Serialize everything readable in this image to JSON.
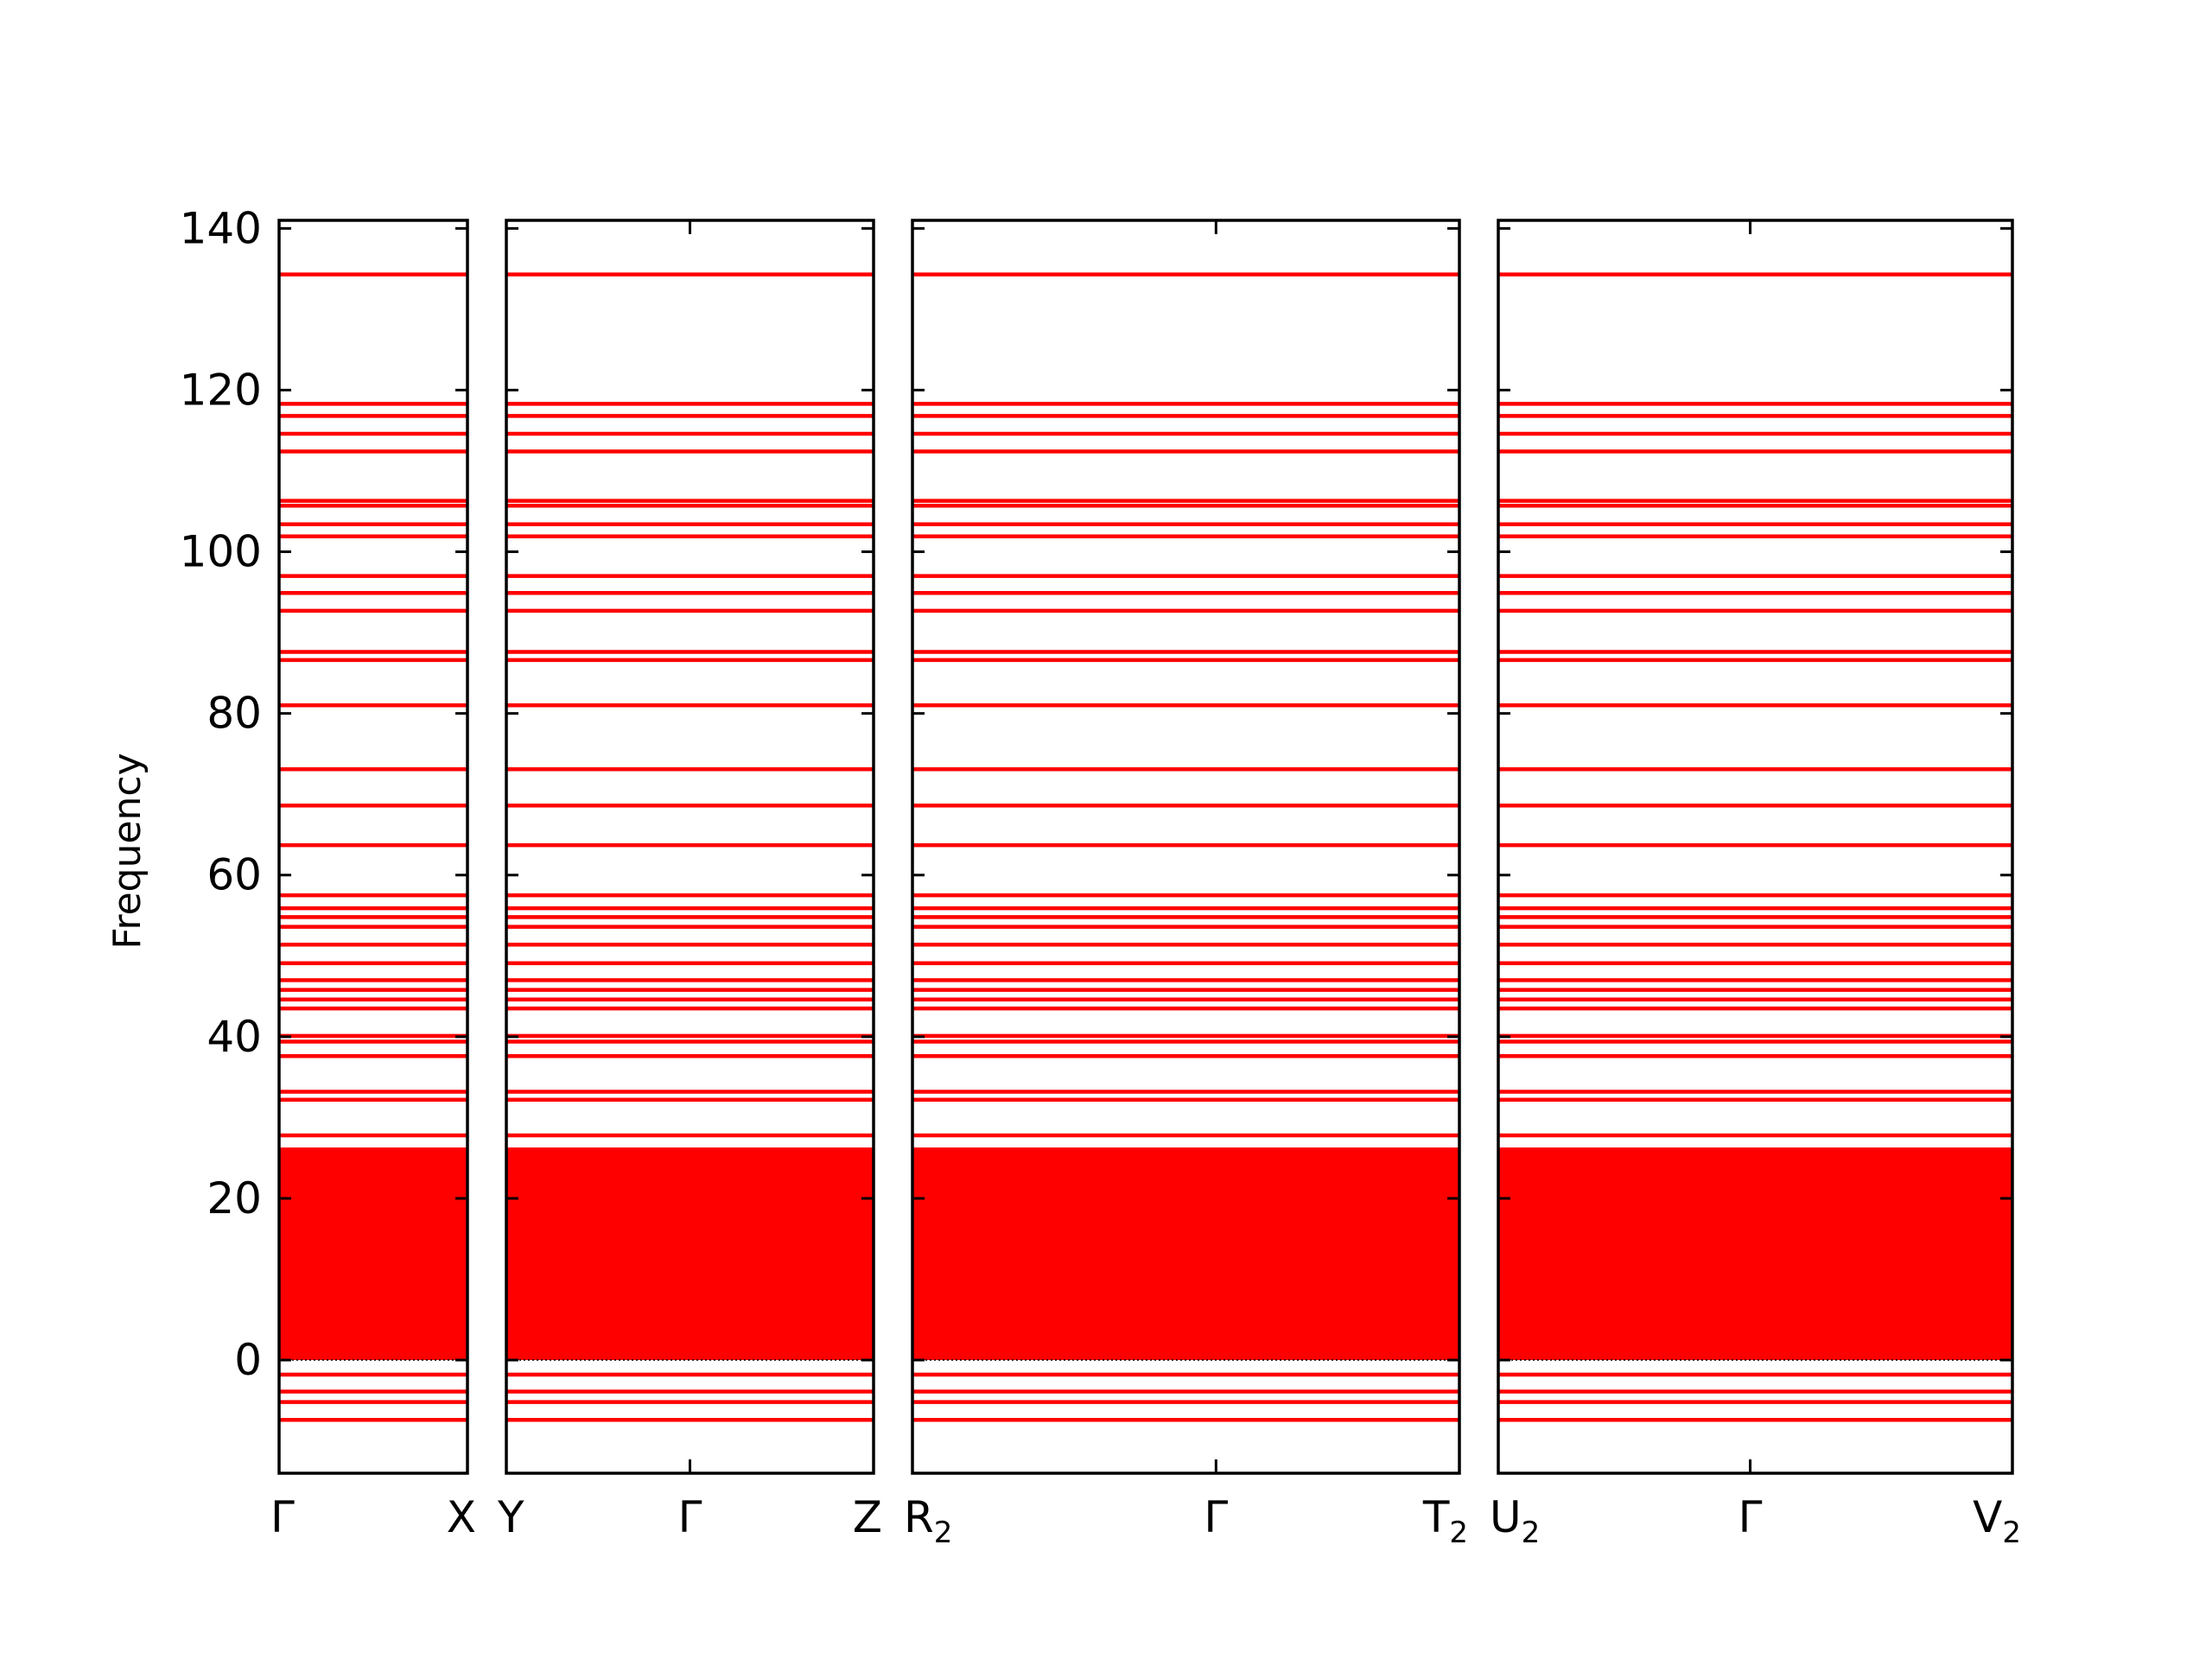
{
  "chart_data": {
    "type": "line",
    "ylabel": "Frequency",
    "ylim": [
      -14,
      141
    ],
    "yticks": [
      0,
      20,
      40,
      60,
      80,
      100,
      120,
      140
    ],
    "band_color": "#ff0000",
    "zero_line_color": "#000000",
    "panels": [
      {
        "name": "panel-1",
        "xlim": [
          0,
          1
        ],
        "ticks": [
          {
            "x": 0,
            "label": "Γ"
          },
          {
            "x": 1,
            "label": "X"
          }
        ]
      },
      {
        "name": "panel-2",
        "xlim": [
          0,
          1
        ],
        "ticks": [
          {
            "x": 0,
            "label": "Y"
          },
          {
            "x": 0.5,
            "label": "Γ"
          },
          {
            "x": 1,
            "label": "Z"
          }
        ]
      },
      {
        "name": "panel-3",
        "xlim": [
          0,
          1
        ],
        "ticks": [
          {
            "x": 0,
            "label": "R",
            "sub": "2"
          },
          {
            "x": 0.555,
            "label": "Γ"
          },
          {
            "x": 1,
            "label": "T",
            "sub": "2"
          }
        ]
      },
      {
        "name": "panel-4",
        "xlim": [
          0,
          1
        ],
        "ticks": [
          {
            "x": 0,
            "label": "U",
            "sub": "2"
          },
          {
            "x": 0.49,
            "label": "Γ"
          },
          {
            "x": 1,
            "label": "V",
            "sub": "2"
          }
        ]
      }
    ],
    "flat_bands": [
      134.3,
      118.3,
      116.8,
      114.6,
      112.4,
      106.3,
      105.7,
      103.4,
      101.9,
      97.0,
      94.9,
      92.7,
      87.6,
      86.6,
      81.0,
      73.1,
      68.6,
      63.7,
      57.5,
      55.9,
      54.8,
      53.6,
      51.4,
      49.1,
      47.0,
      45.8,
      44.6,
      43.5,
      40.1,
      39.4,
      37.6,
      33.2,
      32.2,
      27.8,
      -1.8,
      -3.9,
      -5.2,
      -7.4
    ],
    "dense_band_range": [
      0,
      26.3
    ],
    "zero_band": 0
  }
}
